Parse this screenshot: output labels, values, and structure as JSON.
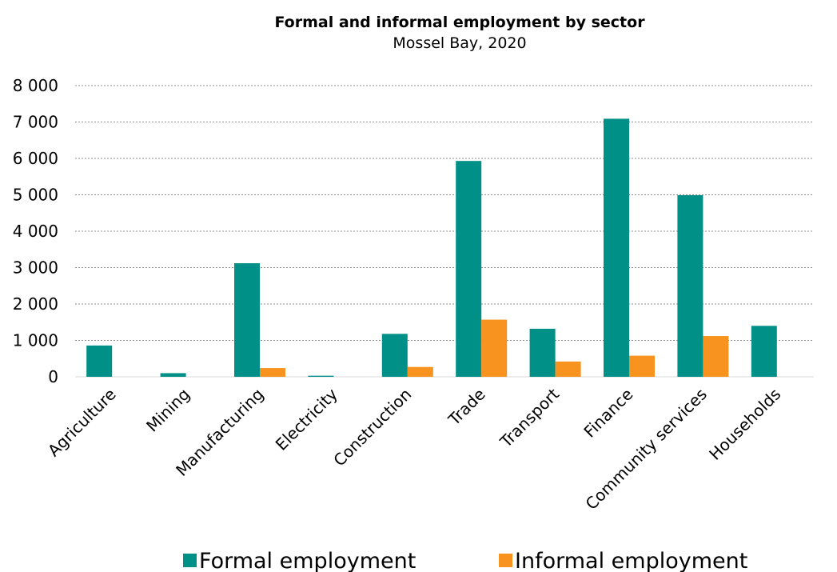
{
  "chart_data": {
    "type": "bar",
    "title": "Formal and informal employment by sector",
    "subtitle": "Mossel Bay, 2020",
    "categories": [
      "Agriculture",
      "Mining",
      "Manufacturing",
      "Electricity",
      "Construction",
      "Trade",
      "Transport",
      "Finance",
      "Community services",
      "Households"
    ],
    "series": [
      {
        "name": "Formal employment",
        "color": "#009088",
        "values": [
          860,
          100,
          3120,
          30,
          1180,
          5930,
          1320,
          7090,
          4990,
          1400
        ]
      },
      {
        "name": "Informal employment",
        "color": "#F7931E",
        "values": [
          0,
          0,
          240,
          0,
          270,
          1570,
          420,
          580,
          1120,
          0
        ]
      }
    ],
    "ylim": [
      0,
      8000
    ],
    "yticks": [
      0,
      1000,
      2000,
      3000,
      4000,
      5000,
      6000,
      7000,
      8000
    ],
    "ytick_labels": [
      "0",
      "1 000",
      "2 000",
      "3 000",
      "4 000",
      "5 000",
      "6 000",
      "7 000",
      "8 000"
    ],
    "grid": true,
    "legend_position": "bottom"
  }
}
